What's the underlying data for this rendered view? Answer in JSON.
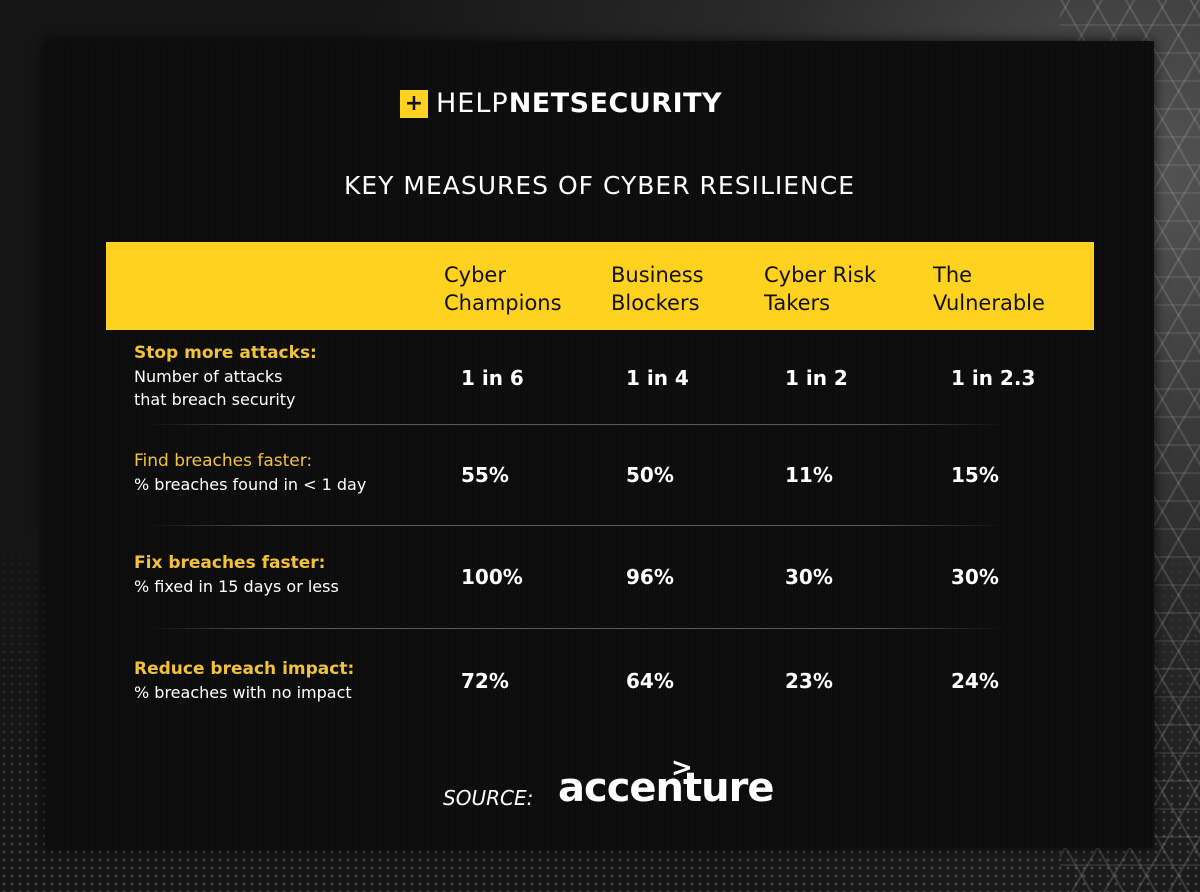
{
  "logo": {
    "box_glyph": "+",
    "help": "HELP",
    "netsecurity": "NETSECURITY"
  },
  "colors": {
    "accent": "#ffd21f",
    "row_lead": "#f2c23a",
    "panel": "#0c0c0c"
  },
  "chart_data": {
    "type": "table",
    "title": "KEY MEASURES OF CYBER RESILIENCE",
    "columns": [
      "Cyber Champions",
      "Business Blockers",
      "Cyber Risk Takers",
      "The Vulnerable"
    ],
    "column_lines": [
      [
        "Cyber",
        "Champions"
      ],
      [
        "Business",
        "Blockers"
      ],
      [
        "Cyber Risk",
        "Takers"
      ],
      [
        "The",
        "Vulnerable"
      ]
    ],
    "rows": [
      {
        "lead": "Stop more attacks:",
        "sub": "Number of attacks that breach security",
        "values": [
          "1 in 6",
          "1 in 4",
          "1 in 2",
          "1 in 2.3"
        ]
      },
      {
        "lead": "Find breaches faster:",
        "sub": "% breaches found in < 1 day",
        "values": [
          "55%",
          "50%",
          "11%",
          "15%"
        ]
      },
      {
        "lead": "Fix breaches faster:",
        "sub": "% fixed in 15 days or less",
        "values": [
          "100%",
          "96%",
          "30%",
          "30%"
        ]
      },
      {
        "lead": "Reduce breach impact:",
        "sub": "% breaches with no impact",
        "values": [
          "72%",
          "64%",
          "23%",
          "24%"
        ]
      }
    ]
  },
  "footer": {
    "source_label": "SOURCE:",
    "brand": "accenture",
    "brand_mark": ">"
  }
}
